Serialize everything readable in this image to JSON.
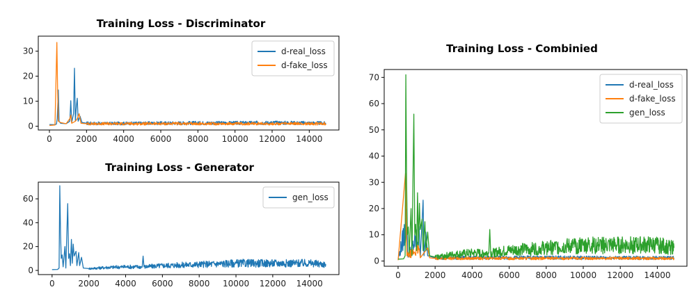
{
  "colors": {
    "blue": "#1f77b4",
    "orange": "#ff7f0e",
    "green": "#2ca02c"
  },
  "chart_data": [
    {
      "id": "disc",
      "type": "line",
      "title": "Training Loss - Discriminator",
      "xlim": [
        -600,
        15600
      ],
      "ylim": [
        -1.5,
        36
      ],
      "xticks": [
        0,
        2000,
        4000,
        6000,
        8000,
        10000,
        12000,
        14000
      ],
      "yticks": [
        0,
        10,
        20,
        30
      ],
      "legend": "top-right",
      "series": [
        {
          "name": "d-real_loss",
          "color": "#1f77b4",
          "points": [
            [
              0,
              0.7
            ],
            [
              300,
              0.6
            ],
            [
              380,
              0.9
            ],
            [
              420,
              3
            ],
            [
              480,
              14.5
            ],
            [
              520,
              2
            ],
            [
              600,
              1.2
            ],
            [
              900,
              1
            ],
            [
              1100,
              2
            ],
            [
              1150,
              10.2
            ],
            [
              1200,
              1.5
            ],
            [
              1300,
              5
            ],
            [
              1350,
              23.2
            ],
            [
              1400,
              2
            ],
            [
              1450,
              8
            ],
            [
              1500,
              11.2
            ],
            [
              1550,
              2
            ],
            [
              1650,
              4
            ],
            [
              1750,
              1.5
            ],
            [
              2000,
              1.2
            ],
            [
              3000,
              1.1
            ],
            [
              5000,
              1.2
            ],
            [
              8000,
              1.3
            ],
            [
              10000,
              1.3
            ],
            [
              12000,
              1.4
            ],
            [
              14000,
              1.3
            ],
            [
              14900,
              1.2
            ]
          ]
        },
        {
          "name": "d-fake_loss",
          "color": "#ff7f0e",
          "points": [
            [
              0,
              0.3
            ],
            [
              300,
              0.5
            ],
            [
              400,
              33.5
            ],
            [
              440,
              15.5
            ],
            [
              480,
              2
            ],
            [
              600,
              1.5
            ],
            [
              900,
              1
            ],
            [
              1100,
              3
            ],
            [
              1150,
              4.5
            ],
            [
              1200,
              1.2
            ],
            [
              1400,
              2
            ],
            [
              1500,
              3
            ],
            [
              1600,
              5
            ],
            [
              1700,
              1.2
            ],
            [
              2000,
              1
            ],
            [
              4000,
              1
            ],
            [
              8000,
              1
            ],
            [
              12000,
              1
            ],
            [
              14900,
              1
            ]
          ]
        }
      ]
    },
    {
      "id": "gen",
      "type": "line",
      "title": "Training Loss - Generator",
      "xlim": [
        -750,
        15600
      ],
      "ylim": [
        -3.5,
        74
      ],
      "xticks": [
        0,
        2000,
        4000,
        6000,
        8000,
        10000,
        12000,
        14000
      ],
      "yticks": [
        0,
        20,
        40,
        60
      ],
      "legend": "top-right",
      "series": [
        {
          "name": "gen_loss",
          "color": "#1f77b4",
          "points": [
            [
              0,
              0.7
            ],
            [
              300,
              0.8
            ],
            [
              380,
              2
            ],
            [
              420,
              71
            ],
            [
              460,
              30
            ],
            [
              500,
              10
            ],
            [
              550,
              13
            ],
            [
              600,
              3
            ],
            [
              700,
              20
            ],
            [
              750,
              2
            ],
            [
              850,
              56
            ],
            [
              900,
              10
            ],
            [
              950,
              14
            ],
            [
              1000,
              4
            ],
            [
              1050,
              26
            ],
            [
              1100,
              6
            ],
            [
              1150,
              22
            ],
            [
              1200,
              12
            ],
            [
              1300,
              16
            ],
            [
              1350,
              4
            ],
            [
              1450,
              15
            ],
            [
              1500,
              4
            ],
            [
              1600,
              11
            ],
            [
              1700,
              2
            ],
            [
              2000,
              1.5
            ],
            [
              3000,
              2.5
            ],
            [
              4000,
              3
            ],
            [
              4900,
              3
            ],
            [
              4950,
              12
            ],
            [
              5000,
              3
            ],
            [
              6000,
              4
            ],
            [
              8000,
              5
            ],
            [
              10000,
              6
            ],
            [
              12000,
              6
            ],
            [
              14000,
              6
            ],
            [
              14900,
              5
            ]
          ]
        }
      ]
    },
    {
      "id": "comb",
      "type": "line",
      "title": "Training Loss - Combinied",
      "xlim": [
        -750,
        15600
      ],
      "ylim": [
        -2,
        73
      ],
      "xticks": [
        0,
        2000,
        4000,
        6000,
        8000,
        10000,
        12000,
        14000
      ],
      "yticks": [
        0,
        10,
        20,
        30,
        40,
        50,
        60,
        70
      ],
      "legend": "top-right",
      "series": [
        {
          "name": "d-real_loss",
          "color": "#1f77b4",
          "points": [
            [
              0,
              0.7
            ],
            [
              480,
              14.5
            ],
            [
              520,
              2
            ],
            [
              1150,
              10
            ],
            [
              1200,
              1.5
            ],
            [
              1350,
              23.2
            ],
            [
              1400,
              2
            ],
            [
              1500,
              11
            ],
            [
              1600,
              2
            ],
            [
              2000,
              1.2
            ],
            [
              8000,
              1.3
            ],
            [
              14900,
              1.2
            ]
          ]
        },
        {
          "name": "d-fake_loss",
          "color": "#ff7f0e",
          "points": [
            [
              0,
              0.3
            ],
            [
              400,
              33.5
            ],
            [
              440,
              15
            ],
            [
              480,
              2
            ],
            [
              1150,
              4.5
            ],
            [
              1200,
              1.2
            ],
            [
              1600,
              5
            ],
            [
              1700,
              1.2
            ],
            [
              2000,
              1
            ],
            [
              8000,
              1
            ],
            [
              14900,
              1
            ]
          ]
        },
        {
          "name": "gen_loss",
          "color": "#2ca02c",
          "points": [
            [
              0,
              0.7
            ],
            [
              300,
              0.8
            ],
            [
              380,
              2
            ],
            [
              420,
              71
            ],
            [
              460,
              30
            ],
            [
              500,
              10
            ],
            [
              550,
              13
            ],
            [
              600,
              3
            ],
            [
              700,
              20
            ],
            [
              750,
              2
            ],
            [
              850,
              56
            ],
            [
              900,
              10
            ],
            [
              950,
              14
            ],
            [
              1000,
              4
            ],
            [
              1050,
              26
            ],
            [
              1100,
              6
            ],
            [
              1150,
              22
            ],
            [
              1200,
              12
            ],
            [
              1300,
              16
            ],
            [
              1350,
              4
            ],
            [
              1450,
              15
            ],
            [
              1500,
              4
            ],
            [
              1600,
              11
            ],
            [
              1700,
              2
            ],
            [
              2000,
              1.5
            ],
            [
              3000,
              2.5
            ],
            [
              4000,
              3
            ],
            [
              4900,
              3
            ],
            [
              4950,
              12
            ],
            [
              5000,
              3
            ],
            [
              6000,
              4
            ],
            [
              8000,
              5
            ],
            [
              10000,
              6
            ],
            [
              12000,
              6
            ],
            [
              14000,
              6
            ],
            [
              14900,
              5
            ]
          ]
        }
      ]
    }
  ]
}
